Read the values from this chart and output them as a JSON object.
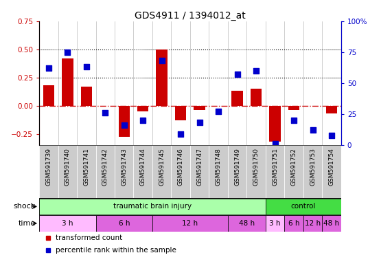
{
  "title": "GDS4911 / 1394012_at",
  "samples": [
    "GSM591739",
    "GSM591740",
    "GSM591741",
    "GSM591742",
    "GSM591743",
    "GSM591744",
    "GSM591745",
    "GSM591746",
    "GSM591747",
    "GSM591748",
    "GSM591749",
    "GSM591750",
    "GSM591751",
    "GSM591752",
    "GSM591753",
    "GSM591754"
  ],
  "bar_values": [
    0.18,
    0.42,
    0.17,
    0.0,
    -0.28,
    -0.05,
    0.5,
    -0.13,
    -0.04,
    0.0,
    0.13,
    0.15,
    -0.32,
    -0.04,
    0.0,
    -0.07
  ],
  "dot_values_pct": [
    0.62,
    0.75,
    0.63,
    0.26,
    0.16,
    0.2,
    0.68,
    0.09,
    0.18,
    0.27,
    0.57,
    0.6,
    0.01,
    0.2,
    0.12,
    0.08
  ],
  "bar_color": "#cc0000",
  "dot_color": "#0000cc",
  "ylim": [
    -0.35,
    0.75
  ],
  "y2lim": [
    0.0,
    1.0
  ],
  "yticks": [
    -0.25,
    0.0,
    0.25,
    0.5,
    0.75
  ],
  "y2ticks": [
    0.0,
    0.25,
    0.5,
    0.75,
    1.0
  ],
  "y2tick_labels": [
    "0",
    "25",
    "50",
    "75",
    "100%"
  ],
  "hline_y": 0.0,
  "dotted_lines": [
    0.25,
    0.5
  ],
  "shock_groups": [
    {
      "label": "traumatic brain injury",
      "start": 0,
      "end": 12,
      "color": "#aaffaa"
    },
    {
      "label": "control",
      "start": 12,
      "end": 16,
      "color": "#44dd44"
    }
  ],
  "time_groups": [
    {
      "label": "3 h",
      "start": 0,
      "end": 3,
      "color": "#ffbbff"
    },
    {
      "label": "6 h",
      "start": 3,
      "end": 6,
      "color": "#dd66dd"
    },
    {
      "label": "12 h",
      "start": 6,
      "end": 10,
      "color": "#dd66dd"
    },
    {
      "label": "48 h",
      "start": 10,
      "end": 12,
      "color": "#dd66dd"
    },
    {
      "label": "3 h",
      "start": 12,
      "end": 13,
      "color": "#ffbbff"
    },
    {
      "label": "6 h",
      "start": 13,
      "end": 14,
      "color": "#dd66dd"
    },
    {
      "label": "12 h",
      "start": 14,
      "end": 15,
      "color": "#dd66dd"
    },
    {
      "label": "48 h",
      "start": 15,
      "end": 16,
      "color": "#dd66dd"
    }
  ],
  "legend_items": [
    {
      "label": "transformed count",
      "color": "#cc0000",
      "marker": "s"
    },
    {
      "label": "percentile rank within the sample",
      "color": "#0000cc",
      "marker": "s"
    }
  ],
  "shock_label": "shock",
  "time_label": "time",
  "bar_width": 0.6,
  "dot_size": 28,
  "xlabel_fontsize": 6.5,
  "tick_fontsize": 7.5,
  "title_fontsize": 10,
  "background_color": "#ffffff",
  "sample_bg": "#cccccc",
  "zero_line_color": "#cc0000",
  "right_axis_color": "#0000cc"
}
